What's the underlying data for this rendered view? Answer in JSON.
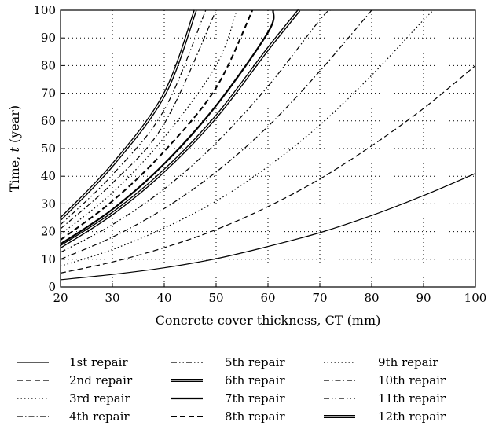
{
  "chart_data": {
    "type": "line",
    "xlabel": "Concrete cover thickness, CT (mm)",
    "ylabel_prefix": "Time, ",
    "ylabel_var": "t",
    "ylabel_suffix": " (year)",
    "xlim": [
      20,
      100
    ],
    "ylim": [
      0,
      100
    ],
    "xticks": [
      20,
      30,
      40,
      50,
      60,
      70,
      80,
      90,
      100
    ],
    "yticks": [
      0,
      10,
      20,
      30,
      40,
      50,
      60,
      70,
      80,
      90,
      100
    ],
    "grid": "dotted",
    "legend_position": "below",
    "series": [
      {
        "name": "1st repair",
        "style": "solid",
        "y0": 2.6,
        "x100": 100,
        "values": [
          [
            20,
            2.6
          ],
          [
            30,
            4.5
          ],
          [
            40,
            6.9
          ],
          [
            50,
            10.2
          ],
          [
            60,
            14.6
          ],
          [
            70,
            19.6
          ],
          [
            80,
            25.8
          ],
          [
            90,
            33.0
          ],
          [
            100,
            41.0
          ]
        ]
      },
      {
        "name": "2nd repair",
        "style": "dashed",
        "y0": 5.0,
        "x100": 100,
        "values": [
          [
            20,
            5.0
          ],
          [
            30,
            9.0
          ],
          [
            40,
            14.2
          ],
          [
            50,
            20.7
          ],
          [
            60,
            29.0
          ],
          [
            70,
            39.0
          ],
          [
            80,
            51.0
          ],
          [
            90,
            64.5
          ],
          [
            100,
            80.0
          ]
        ]
      },
      {
        "name": "3rd repair",
        "style": "dotted",
        "y0": 7.5,
        "x100": 92,
        "values": [
          [
            20,
            7.5
          ],
          [
            30,
            13.5
          ],
          [
            40,
            21.3
          ],
          [
            50,
            31.0
          ],
          [
            60,
            43.5
          ],
          [
            70,
            58.5
          ],
          [
            80,
            76.5
          ],
          [
            90,
            96.5
          ],
          [
            92,
            100
          ]
        ]
      },
      {
        "name": "4th repair",
        "style": "dashdot",
        "y0": 10.0,
        "x100": 80,
        "values": [
          [
            20,
            10.0
          ],
          [
            30,
            18.0
          ],
          [
            40,
            28.3
          ],
          [
            50,
            41.5
          ],
          [
            60,
            58.0
          ],
          [
            70,
            78.0
          ],
          [
            80,
            100
          ]
        ]
      },
      {
        "name": "5th repair",
        "style": "dashdotdot",
        "y0": 12.5,
        "x100": 72,
        "values": [
          [
            20,
            12.5
          ],
          [
            30,
            22.5
          ],
          [
            40,
            35.4
          ],
          [
            50,
            52.0
          ],
          [
            60,
            72.5
          ],
          [
            70,
            96.5
          ],
          [
            72,
            100
          ]
        ]
      },
      {
        "name": "6th repair",
        "style": "double",
        "y0": 14.5,
        "x100": 66,
        "values": [
          [
            20,
            14.5
          ],
          [
            30,
            26.5
          ],
          [
            40,
            42.0
          ],
          [
            50,
            61.5
          ],
          [
            60,
            86.0
          ],
          [
            66,
            100
          ]
        ]
      },
      {
        "name": "7th repair",
        "style": "thick",
        "y0": 15.5,
        "x100": 61,
        "values": [
          [
            20,
            15.5
          ],
          [
            30,
            28.0
          ],
          [
            40,
            44.5
          ],
          [
            50,
            65.5
          ],
          [
            60,
            92.0
          ],
          [
            61,
            100
          ]
        ]
      },
      {
        "name": "8th repair",
        "style": "thickdashed",
        "y0": 17.0,
        "x100": 57,
        "values": [
          [
            20,
            17.0
          ],
          [
            30,
            31.0
          ],
          [
            40,
            49.0
          ],
          [
            50,
            72.0
          ],
          [
            57,
            100
          ]
        ]
      },
      {
        "name": "9th repair",
        "style": "dotted",
        "y0": 19.0,
        "x100": 54,
        "values": [
          [
            20,
            19.0
          ],
          [
            30,
            34.0
          ],
          [
            40,
            54.0
          ],
          [
            50,
            80.0
          ],
          [
            54,
            100
          ]
        ]
      },
      {
        "name": "10th repair",
        "style": "dashdot",
        "y0": 21.0,
        "x100": 50,
        "values": [
          [
            20,
            21.0
          ],
          [
            30,
            37.5
          ],
          [
            40,
            59.0
          ],
          [
            50,
            100
          ]
        ]
      },
      {
        "name": "11th repair",
        "style": "dashdotdot",
        "y0": 22.5,
        "x100": 48,
        "values": [
          [
            20,
            22.5
          ],
          [
            30,
            40.5
          ],
          [
            40,
            64.0
          ],
          [
            48,
            100
          ]
        ]
      },
      {
        "name": "12th repair",
        "style": "double",
        "y0": 24.5,
        "x100": 46,
        "values": [
          [
            20,
            24.5
          ],
          [
            30,
            44.0
          ],
          [
            40,
            69.5
          ],
          [
            46,
            100
          ]
        ]
      }
    ]
  }
}
